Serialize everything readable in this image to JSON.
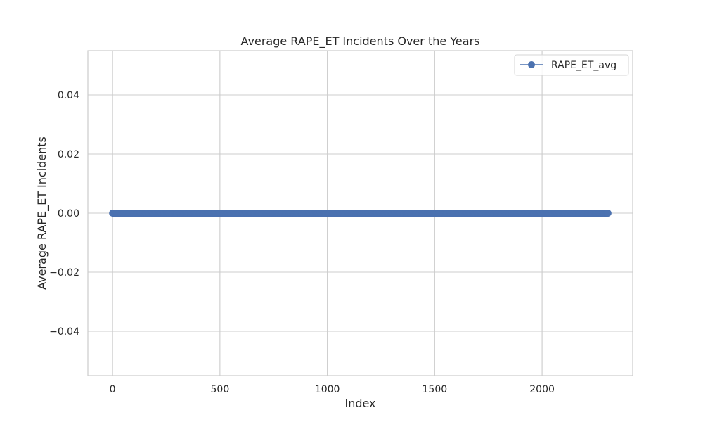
{
  "chart_data": {
    "type": "line",
    "title": "Average RAPE_ET Incidents Over the Years",
    "xlabel": "Index",
    "ylabel": "Average RAPE_ET Incidents",
    "xlim": [
      -115,
      2422
    ],
    "ylim": [
      -0.055,
      0.055
    ],
    "x_ticks": [
      0,
      500,
      1000,
      1500,
      2000
    ],
    "y_ticks": [
      -0.04,
      -0.02,
      0.0,
      0.02,
      0.04
    ],
    "x_tick_labels": [
      "0",
      "500",
      "1000",
      "1500",
      "2000"
    ],
    "y_tick_labels": [
      "−0.04",
      "−0.02",
      "0.00",
      "0.02",
      "0.04"
    ],
    "grid": true,
    "legend_position": "top-right",
    "series": [
      {
        "name": "RAPE_ET_avg",
        "color": "#4c72b0",
        "marker": "circle",
        "x_start": 0,
        "x_end": 2307,
        "x_step": 1,
        "constant_value": 0.0
      }
    ]
  }
}
